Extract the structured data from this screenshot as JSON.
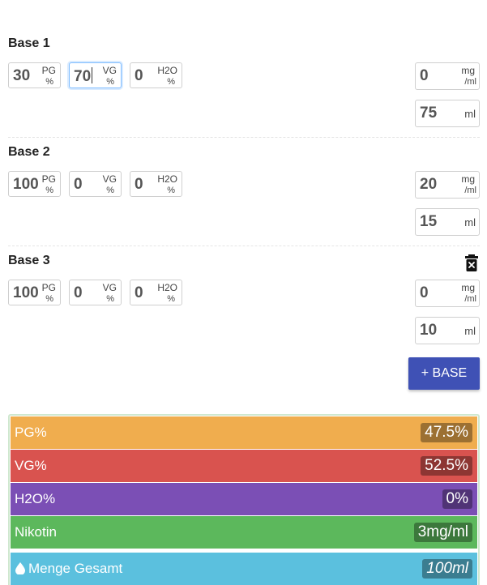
{
  "bases": [
    {
      "title": "Base 1",
      "pg": "30",
      "vg": "70",
      "h2o": "0",
      "nicotine": "0",
      "amount": "75",
      "deletable": false
    },
    {
      "title": "Base 2",
      "pg": "100",
      "vg": "0",
      "h2o": "0",
      "nicotine": "20",
      "amount": "15",
      "deletable": false
    },
    {
      "title": "Base 3",
      "pg": "100",
      "vg": "0",
      "h2o": "0",
      "nicotine": "0",
      "amount": "10",
      "deletable": true
    }
  ],
  "units": {
    "pg": "PG",
    "vg": "VG",
    "h2o": "H2O",
    "percent": "%",
    "mg": "mg",
    "per_ml": "/ml",
    "ml": "ml"
  },
  "add_button_label": "+ BASE",
  "results": [
    {
      "label": "PG%",
      "value": "47.5%",
      "color": "#f0ad4e"
    },
    {
      "label": "VG%",
      "value": "52.5%",
      "color": "#d9534f"
    },
    {
      "label": "H2O%",
      "value": "0%",
      "color": "#7b4fb5"
    },
    {
      "label": "Nikotin",
      "value": "3mg/ml",
      "color": "#5cb85c"
    },
    {
      "label": "Menge Gesamt",
      "value": "100ml",
      "color": "#5bc0de",
      "icon": "drop-icon"
    }
  ]
}
